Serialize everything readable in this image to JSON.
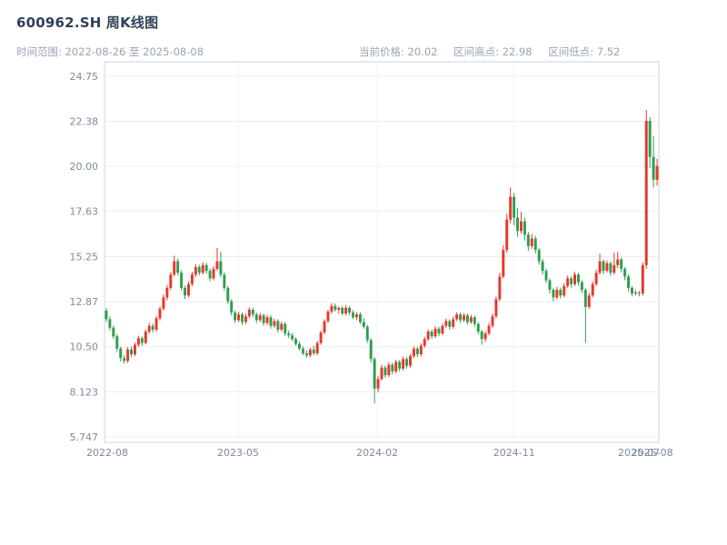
{
  "header": {
    "title": "600962.SH 周K线图",
    "subtitle_left": "时间范围: 2022-08-26 至 2025-08-08",
    "stats": [
      "当前价格: 20.02",
      "区间高点: 22.98",
      "区间低点: 7.52"
    ]
  },
  "chart_data": {
    "type": "candlestick",
    "symbol": "600962.SH",
    "interval": "weekly",
    "title": "600962.SH 周K线图",
    "date_range": {
      "start": "2022-08-26",
      "end": "2025-08-08"
    },
    "current_price": 20.02,
    "range_high": 22.98,
    "range_low": 7.52,
    "ylim": [
      5.747,
      24.75
    ],
    "grid": true,
    "up_color": "#e8372c",
    "down_color": "#2e9e4f",
    "grid_color": "#e9edf3",
    "vgrid_color": "#f1f3f7",
    "border_color": "#ccd3dd",
    "axis_label_color": "#7d8a9c",
    "y_ticks": [
      {
        "label": "24.75",
        "value": 24.75
      },
      {
        "label": "22.38",
        "value": 22.38
      },
      {
        "label": "20.00",
        "value": 20.0
      },
      {
        "label": "17.63",
        "value": 17.63
      },
      {
        "label": "15.25",
        "value": 15.25
      },
      {
        "label": "12.87",
        "value": 12.87
      },
      {
        "label": "10.50",
        "value": 10.5
      },
      {
        "label": "8.123",
        "value": 8.123
      },
      {
        "label": "5.747",
        "value": 5.747
      }
    ],
    "x_ticks": [
      {
        "label": "2022-08",
        "pos": 0.005
      },
      {
        "label": "2023-05",
        "pos": 0.241
      },
      {
        "label": "2024-02",
        "pos": 0.492
      },
      {
        "label": "2024-11",
        "pos": 0.739
      },
      {
        "label": "2025-07",
        "pos": 0.964
      },
      {
        "label": "2025-08",
        "pos": 0.988
      }
    ],
    "candles": [
      [
        12.4,
        12.55,
        11.8,
        11.95
      ],
      [
        11.95,
        12.1,
        11.35,
        11.5
      ],
      [
        11.5,
        11.62,
        10.9,
        11.05
      ],
      [
        11.05,
        11.15,
        10.25,
        10.4
      ],
      [
        10.4,
        10.5,
        9.72,
        9.9
      ],
      [
        9.9,
        10.05,
        9.6,
        9.75
      ],
      [
        9.75,
        10.48,
        9.65,
        10.35
      ],
      [
        10.35,
        10.5,
        9.95,
        10.1
      ],
      [
        10.1,
        10.72,
        10.0,
        10.6
      ],
      [
        10.6,
        11.08,
        10.5,
        10.95
      ],
      [
        10.95,
        11.05,
        10.55,
        10.7
      ],
      [
        10.7,
        11.42,
        10.62,
        11.3
      ],
      [
        11.3,
        11.75,
        11.18,
        11.6
      ],
      [
        11.6,
        11.72,
        11.25,
        11.4
      ],
      [
        11.4,
        12.12,
        11.3,
        12.0
      ],
      [
        12.0,
        12.62,
        11.88,
        12.5
      ],
      [
        12.5,
        13.25,
        12.4,
        13.1
      ],
      [
        13.1,
        13.75,
        12.95,
        13.6
      ],
      [
        13.6,
        14.45,
        13.5,
        14.3
      ],
      [
        14.3,
        15.3,
        14.2,
        15.0
      ],
      [
        15.0,
        15.15,
        14.25,
        14.4
      ],
      [
        14.4,
        14.52,
        13.45,
        13.6
      ],
      [
        13.6,
        13.72,
        13.02,
        13.2
      ],
      [
        13.2,
        13.95,
        13.1,
        13.8
      ],
      [
        13.8,
        14.45,
        13.7,
        14.3
      ],
      [
        14.3,
        14.85,
        14.18,
        14.7
      ],
      [
        14.7,
        14.82,
        14.25,
        14.4
      ],
      [
        14.4,
        14.95,
        14.3,
        14.8
      ],
      [
        14.8,
        14.92,
        14.35,
        14.5
      ],
      [
        14.5,
        14.62,
        13.95,
        14.1
      ],
      [
        14.1,
        14.75,
        14.0,
        14.6
      ],
      [
        14.6,
        15.7,
        14.5,
        15.0
      ],
      [
        15.0,
        15.5,
        14.15,
        14.3
      ],
      [
        14.3,
        14.42,
        13.45,
        13.6
      ],
      [
        13.6,
        13.7,
        12.75,
        12.9
      ],
      [
        12.9,
        13.0,
        12.15,
        12.3
      ],
      [
        12.3,
        12.42,
        11.75,
        11.9
      ],
      [
        11.9,
        12.35,
        11.8,
        12.2
      ],
      [
        12.2,
        12.3,
        11.65,
        11.8
      ],
      [
        11.8,
        12.25,
        11.7,
        12.1
      ],
      [
        12.1,
        12.58,
        12.0,
        12.45
      ],
      [
        12.45,
        12.55,
        12.05,
        12.2
      ],
      [
        12.2,
        12.3,
        11.75,
        11.9
      ],
      [
        11.9,
        12.28,
        11.8,
        12.15
      ],
      [
        12.15,
        12.25,
        11.6,
        11.75
      ],
      [
        11.75,
        12.18,
        11.65,
        12.05
      ],
      [
        12.05,
        12.15,
        11.45,
        11.6
      ],
      [
        11.6,
        11.98,
        11.5,
        11.85
      ],
      [
        11.85,
        11.95,
        11.25,
        11.4
      ],
      [
        11.4,
        11.82,
        11.3,
        11.7
      ],
      [
        11.7,
        11.8,
        11.05,
        11.2
      ],
      [
        11.2,
        11.35,
        10.95,
        11.1
      ],
      [
        11.1,
        11.22,
        10.8,
        10.9
      ],
      [
        10.9,
        11.0,
        10.55,
        10.65
      ],
      [
        10.65,
        10.78,
        10.3,
        10.4
      ],
      [
        10.4,
        10.52,
        10.05,
        10.15
      ],
      [
        10.15,
        10.3,
        9.92,
        10.05
      ],
      [
        10.05,
        10.45,
        9.95,
        10.35
      ],
      [
        10.35,
        10.55,
        10.05,
        10.15
      ],
      [
        10.15,
        10.8,
        10.05,
        10.7
      ],
      [
        10.7,
        11.35,
        10.6,
        11.25
      ],
      [
        11.25,
        11.95,
        11.15,
        11.85
      ],
      [
        11.85,
        12.45,
        11.75,
        12.35
      ],
      [
        12.35,
        12.8,
        12.25,
        12.65
      ],
      [
        12.65,
        12.78,
        12.35,
        12.45
      ],
      [
        12.45,
        12.62,
        12.25,
        12.55
      ],
      [
        12.55,
        12.65,
        12.15,
        12.25
      ],
      [
        12.25,
        12.68,
        12.15,
        12.55
      ],
      [
        12.55,
        12.65,
        12.15,
        12.3
      ],
      [
        12.3,
        12.42,
        11.95,
        12.05
      ],
      [
        12.05,
        12.3,
        11.9,
        12.2
      ],
      [
        12.2,
        12.32,
        11.7,
        11.8
      ],
      [
        11.8,
        12.0,
        11.45,
        11.55
      ],
      [
        11.55,
        11.65,
        10.7,
        10.85
      ],
      [
        10.85,
        10.95,
        9.65,
        9.85
      ],
      [
        9.85,
        9.95,
        7.52,
        8.3
      ],
      [
        8.3,
        8.95,
        8.1,
        8.8
      ],
      [
        8.8,
        9.55,
        8.7,
        9.4
      ],
      [
        9.4,
        9.5,
        8.85,
        9.0
      ],
      [
        9.0,
        9.68,
        8.9,
        9.55
      ],
      [
        9.55,
        9.65,
        9.05,
        9.2
      ],
      [
        9.2,
        9.82,
        9.1,
        9.7
      ],
      [
        9.7,
        9.8,
        9.2,
        9.35
      ],
      [
        9.35,
        9.98,
        9.25,
        9.85
      ],
      [
        9.85,
        9.95,
        9.35,
        9.5
      ],
      [
        9.5,
        10.12,
        9.4,
        10.0
      ],
      [
        10.0,
        10.52,
        9.9,
        10.4
      ],
      [
        10.4,
        10.5,
        9.95,
        10.1
      ],
      [
        10.1,
        10.68,
        10.0,
        10.55
      ],
      [
        10.55,
        11.02,
        10.45,
        10.9
      ],
      [
        10.9,
        11.42,
        10.8,
        11.3
      ],
      [
        11.3,
        11.4,
        10.9,
        11.05
      ],
      [
        11.05,
        11.58,
        10.95,
        11.45
      ],
      [
        11.45,
        11.55,
        11.05,
        11.2
      ],
      [
        11.2,
        11.72,
        11.1,
        11.6
      ],
      [
        11.6,
        11.98,
        11.5,
        11.85
      ],
      [
        11.85,
        11.95,
        11.4,
        11.55
      ],
      [
        11.55,
        12.08,
        11.45,
        11.95
      ],
      [
        11.95,
        12.32,
        11.85,
        12.2
      ],
      [
        12.2,
        12.3,
        11.75,
        11.9
      ],
      [
        11.9,
        12.28,
        11.8,
        12.15
      ],
      [
        12.15,
        12.25,
        11.65,
        11.8
      ],
      [
        11.8,
        12.18,
        11.7,
        12.05
      ],
      [
        12.05,
        12.15,
        11.55,
        11.7
      ],
      [
        11.7,
        11.8,
        11.15,
        11.3
      ],
      [
        11.3,
        11.4,
        10.6,
        10.9
      ],
      [
        10.9,
        11.32,
        10.75,
        11.2
      ],
      [
        11.2,
        11.75,
        11.1,
        11.6
      ],
      [
        11.6,
        12.25,
        11.5,
        12.1
      ],
      [
        12.1,
        13.15,
        12.0,
        13.0
      ],
      [
        13.0,
        14.4,
        12.9,
        14.2
      ],
      [
        14.2,
        15.85,
        14.1,
        15.6
      ],
      [
        15.6,
        17.5,
        15.45,
        17.2
      ],
      [
        17.2,
        18.9,
        17.0,
        18.4
      ],
      [
        18.4,
        18.6,
        16.9,
        17.3
      ],
      [
        17.3,
        17.8,
        16.3,
        16.6
      ],
      [
        16.6,
        17.6,
        16.45,
        17.1
      ],
      [
        17.1,
        17.3,
        16.1,
        16.4
      ],
      [
        16.4,
        16.55,
        15.55,
        15.8
      ],
      [
        15.8,
        16.45,
        15.65,
        16.2
      ],
      [
        16.2,
        16.35,
        15.4,
        15.6
      ],
      [
        15.6,
        15.72,
        14.82,
        15.0
      ],
      [
        15.0,
        15.12,
        14.3,
        14.5
      ],
      [
        14.5,
        14.62,
        13.85,
        14.0
      ],
      [
        14.0,
        14.1,
        13.3,
        13.5
      ],
      [
        13.5,
        13.6,
        12.9,
        13.1
      ],
      [
        13.1,
        13.65,
        13.0,
        13.5
      ],
      [
        13.5,
        13.62,
        13.05,
        13.2
      ],
      [
        13.2,
        13.85,
        13.1,
        13.7
      ],
      [
        13.7,
        14.25,
        13.6,
        14.1
      ],
      [
        14.1,
        14.2,
        13.62,
        13.8
      ],
      [
        13.8,
        14.45,
        13.7,
        14.3
      ],
      [
        14.3,
        14.4,
        13.72,
        13.9
      ],
      [
        13.9,
        14.0,
        13.32,
        13.5
      ],
      [
        13.5,
        13.58,
        10.7,
        12.6
      ],
      [
        12.6,
        13.35,
        12.5,
        13.2
      ],
      [
        13.2,
        13.95,
        13.1,
        13.8
      ],
      [
        13.8,
        14.55,
        13.7,
        14.4
      ],
      [
        14.4,
        15.4,
        14.3,
        15.0
      ],
      [
        15.0,
        15.1,
        14.32,
        14.5
      ],
      [
        14.5,
        15.05,
        14.4,
        14.9
      ],
      [
        14.9,
        15.0,
        14.22,
        14.4
      ],
      [
        14.4,
        15.45,
        14.3,
        14.8
      ],
      [
        14.8,
        15.5,
        14.65,
        15.1
      ],
      [
        15.1,
        15.2,
        14.42,
        14.6
      ],
      [
        14.6,
        14.7,
        14.0,
        14.2
      ],
      [
        14.2,
        14.3,
        13.42,
        13.6
      ],
      [
        13.6,
        13.7,
        13.15,
        13.3
      ],
      [
        13.3,
        13.48,
        13.2,
        13.35
      ],
      [
        13.35,
        13.45,
        13.15,
        13.3
      ],
      [
        13.3,
        14.95,
        13.2,
        14.8
      ],
      [
        14.8,
        22.98,
        14.6,
        22.4
      ],
      [
        22.4,
        22.6,
        19.9,
        20.5
      ],
      [
        20.5,
        21.6,
        18.9,
        19.3
      ],
      [
        19.3,
        20.4,
        19.0,
        20.02
      ]
    ]
  }
}
